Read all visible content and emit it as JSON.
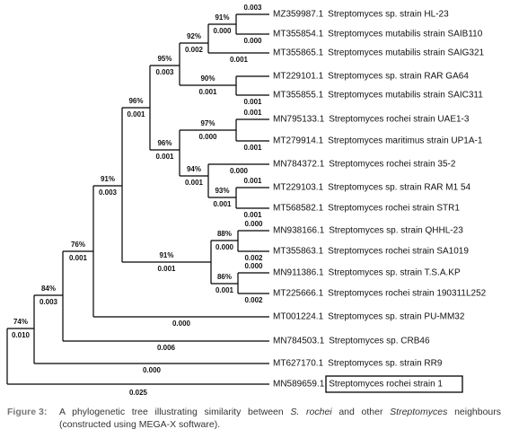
{
  "tree": {
    "leaves": [
      {
        "accession": "MZ359987.1",
        "name": "Streptomyces sp. strain HL-23",
        "branch_length": "0.003"
      },
      {
        "accession": "MT355854.1",
        "name": "Streptomyces mutabilis strain SAIB110",
        "branch_length": "0.000"
      },
      {
        "accession": "MT355865.1",
        "name": "Streptomyces mutabilis strain SAIG321",
        "branch_length": "0.001"
      },
      {
        "accession": "MT229101.1",
        "name": "Streptomyces sp. strain RAR GA64"
      },
      {
        "accession": "MT355855.1",
        "name": "Streptomyces mutabilis strain SAIC311",
        "branch_length": "0.001"
      },
      {
        "accession": "MN795133.1",
        "name": "Streptomyces rochei strain UAE1-3",
        "branch_length": "0.001"
      },
      {
        "accession": "MT279914.1",
        "name": "Streptomyces maritimus strain UP1A-1",
        "branch_length": "0.001"
      },
      {
        "accession": "MN784372.1",
        "name": "Streptomyces rochei strain 35-2",
        "branch_length": "0.000"
      },
      {
        "accession": "MT229103.1",
        "name": "Streptomyces sp. strain RAR M1 54",
        "branch_length": "0.001"
      },
      {
        "accession": "MT568582.1",
        "name": "Streptomyces rochei strain STR1",
        "branch_length": "0.001"
      },
      {
        "accession": "MN938166.1",
        "name": "Streptomyces sp. strain QHHL-23",
        "branch_length": "0.000"
      },
      {
        "accession": "MT355863.1",
        "name": "Streptomyces rochei strain SA1019",
        "branch_length": "0.002"
      },
      {
        "accession": "MN911386.1",
        "name": "Streptomyces sp. strain T.S.A.KP",
        "branch_length": "0.000"
      },
      {
        "accession": "MT225666.1",
        "name": "Streptomyces rochei strain 190311L252",
        "branch_length": "0.002"
      },
      {
        "accession": "MT001224.1",
        "name": "Streptomyces sp. strain PU-MM32",
        "branch_length": "0.000"
      },
      {
        "accession": "MN784503.1",
        "name": "Streptomyces sp. CRB46",
        "branch_length": "0.006"
      },
      {
        "accession": "MT627170.1",
        "name": "Streptomyces sp. strain RR9",
        "branch_length": "0.000"
      },
      {
        "accession": "MN589659.1",
        "name": "Streptomyces rochei strain 1",
        "branch_length": "0.025"
      }
    ],
    "nodes": [
      {
        "bootstrap": "74%",
        "branch_length": "0.010"
      },
      {
        "bootstrap": "84%",
        "branch_length": "0.003"
      },
      {
        "bootstrap": "76%",
        "branch_length": "0.001"
      },
      {
        "bootstrap": "91%",
        "branch_length": "0.003"
      },
      {
        "bootstrap": "96%",
        "branch_length": "0.001"
      },
      {
        "bootstrap": "95%",
        "branch_length": "0.003"
      },
      {
        "bootstrap": "92%",
        "branch_length": "0.002"
      },
      {
        "bootstrap": "91%",
        "branch_length": "0.000"
      },
      {
        "bootstrap": "90%",
        "branch_length": "0.001"
      },
      {
        "bootstrap": "96%",
        "branch_length": "0.001"
      },
      {
        "bootstrap": "97%",
        "branch_length": "0.000"
      },
      {
        "bootstrap": "94%",
        "branch_length": "0.001"
      },
      {
        "bootstrap": "93%",
        "branch_length": "0.001"
      },
      {
        "bootstrap": "91%",
        "branch_length": "0.001"
      },
      {
        "bootstrap": "88%",
        "branch_length": "0.000"
      },
      {
        "bootstrap": "86%",
        "branch_length": "0.001"
      }
    ]
  },
  "caption": {
    "label": "Figure 3:",
    "parts": [
      "A phylogenetic tree illustrating similarity between ",
      "S. rochei",
      " and other ",
      "Streptomyces",
      " neighbours (constructed using MEGA-X software)."
    ]
  }
}
